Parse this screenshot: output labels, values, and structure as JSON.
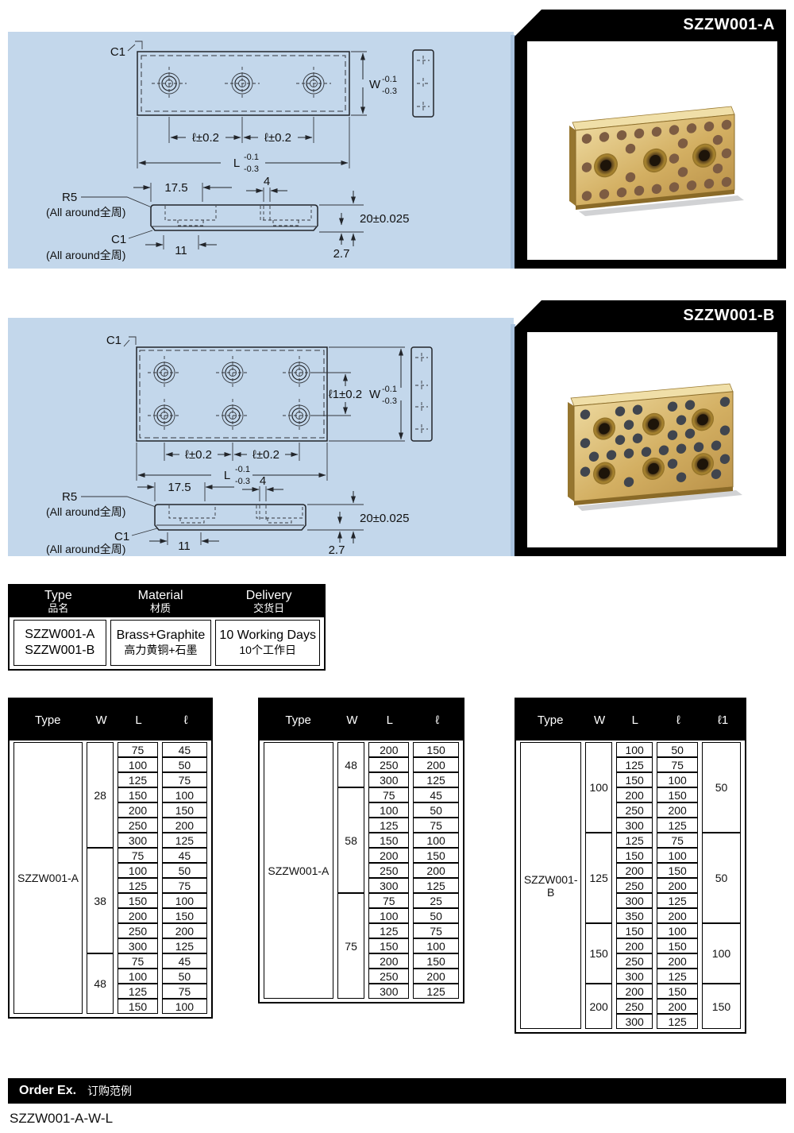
{
  "colors": {
    "panel_blue": "#c3d7eb",
    "accent_strip": "#a9c3df",
    "frame_black": "#000000",
    "header_black": "#000000",
    "brass_light": "#ecd79c",
    "brass_mid": "#d3af62",
    "brass_dark": "#bb934a",
    "plug_a": "#7d5c42",
    "plug_b": "#40454e"
  },
  "products": [
    {
      "label": "SZZW001-A",
      "drawing": {
        "c1": "C1",
        "all_around": "(All around全周)",
        "r5": "R5",
        "w": "W",
        "w_tol_upper": "-0.1",
        "w_tol_lower": "-0.3",
        "l": "L",
        "l_tol_upper": "-0.1",
        "l_tol_lower": "-0.3",
        "pitch": "ℓ±0.2",
        "pitch2": "ℓ±0.2",
        "offset_17_5": "17.5",
        "slot_4": "4",
        "offset_11": "11",
        "thickness": "20±0.025",
        "liner": "2.7"
      }
    },
    {
      "label": "SZZW001-B",
      "drawing": {
        "c1": "C1",
        "all_around": "(All around全周)",
        "r5": "R5",
        "l1_pitch": "ℓ1±0.2",
        "w": "W",
        "w_tol_upper": "-0.1",
        "w_tol_lower": "-0.3",
        "l": "L",
        "l_tol_upper": "-0.1",
        "l_tol_lower": "-0.3",
        "pitch": "ℓ±0.2",
        "pitch2": "ℓ±0.2",
        "offset_17_5": "17.5",
        "slot_4": "4",
        "offset_11": "11",
        "thickness": "20±0.025",
        "liner": "2.7"
      }
    }
  ],
  "spec_table": {
    "columns": [
      {
        "header_en": "Type",
        "header_zh": "品名",
        "line1": "SZZW001-A",
        "line2": "SZZW001-B"
      },
      {
        "header_en": "Material",
        "header_zh": "材质",
        "line1": "Brass+Graphite",
        "line2": "高力黄铜+石墨"
      },
      {
        "header_en": "Delivery",
        "header_zh": "交货日",
        "line1": "10 Working Days",
        "line2": "10个工作日"
      }
    ]
  },
  "size_tables": [
    {
      "columns": [
        "Type",
        "W",
        "L",
        "ℓ"
      ],
      "type_label": "SZZW001-A",
      "groups": [
        {
          "w": "28",
          "rows": [
            [
              "75",
              "45"
            ],
            [
              "100",
              "50"
            ],
            [
              "125",
              "75"
            ],
            [
              "150",
              "100"
            ],
            [
              "200",
              "150"
            ],
            [
              "250",
              "200"
            ],
            [
              "300",
              "125"
            ]
          ]
        },
        {
          "w": "38",
          "rows": [
            [
              "75",
              "45"
            ],
            [
              "100",
              "50"
            ],
            [
              "125",
              "75"
            ],
            [
              "150",
              "100"
            ],
            [
              "200",
              "150"
            ],
            [
              "250",
              "200"
            ],
            [
              "300",
              "125"
            ]
          ]
        },
        {
          "w": "48",
          "rows": [
            [
              "75",
              "45"
            ],
            [
              "100",
              "50"
            ],
            [
              "125",
              "75"
            ],
            [
              "150",
              "100"
            ]
          ]
        }
      ]
    },
    {
      "columns": [
        "Type",
        "W",
        "L",
        "ℓ"
      ],
      "type_label": "SZZW001-A",
      "groups": [
        {
          "w": "48",
          "rows": [
            [
              "200",
              "150"
            ],
            [
              "250",
              "200"
            ],
            [
              "300",
              "125"
            ]
          ]
        },
        {
          "w": "58",
          "rows": [
            [
              "75",
              "45"
            ],
            [
              "100",
              "50"
            ],
            [
              "125",
              "75"
            ],
            [
              "150",
              "100"
            ],
            [
              "200",
              "150"
            ],
            [
              "250",
              "200"
            ],
            [
              "300",
              "125"
            ]
          ]
        },
        {
          "w": "75",
          "rows": [
            [
              "75",
              "25"
            ],
            [
              "100",
              "50"
            ],
            [
              "125",
              "75"
            ],
            [
              "150",
              "100"
            ],
            [
              "200",
              "150"
            ],
            [
              "250",
              "200"
            ],
            [
              "300",
              "125"
            ]
          ]
        }
      ]
    },
    {
      "columns": [
        "Type",
        "W",
        "L",
        "ℓ",
        "ℓ1"
      ],
      "type_label": "SZZW001-B",
      "groups": [
        {
          "w": "100",
          "l1": "50",
          "rows": [
            [
              "100",
              "50"
            ],
            [
              "125",
              "75"
            ],
            [
              "150",
              "100"
            ],
            [
              "200",
              "150"
            ],
            [
              "250",
              "200"
            ],
            [
              "300",
              "125"
            ]
          ]
        },
        {
          "w": "125",
          "l1": "50",
          "rows": [
            [
              "125",
              "75"
            ],
            [
              "150",
              "100"
            ],
            [
              "200",
              "150"
            ],
            [
              "250",
              "200"
            ],
            [
              "300",
              "125"
            ],
            [
              "350",
              "200"
            ]
          ]
        },
        {
          "w": "150",
          "l1": "100",
          "rows": [
            [
              "150",
              "100"
            ],
            [
              "200",
              "150"
            ],
            [
              "250",
              "200"
            ],
            [
              "300",
              "125"
            ]
          ]
        },
        {
          "w": "200",
          "l1": "150",
          "rows": [
            [
              "200",
              "150"
            ],
            [
              "250",
              "200"
            ],
            [
              "300",
              "125"
            ]
          ]
        }
      ]
    }
  ],
  "order": {
    "title_en": "Order Ex.",
    "title_zh": "订购范例",
    "example": "SZZW001-A-W-L"
  }
}
